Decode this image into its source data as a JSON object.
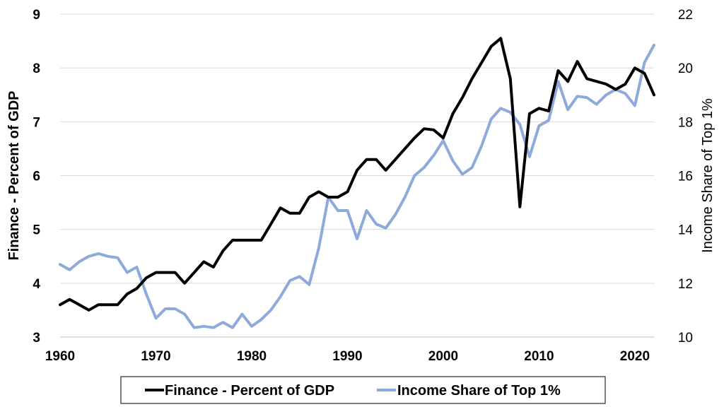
{
  "chart_data": {
    "type": "line",
    "title": "",
    "xlabel": "",
    "xlim": [
      1960,
      2022
    ],
    "x_ticks": [
      "1960",
      "1970",
      "1980",
      "1990",
      "2000",
      "2010",
      "2020"
    ],
    "left_axis": {
      "label": "Finance - Percent of GDP",
      "ylim": [
        3,
        9
      ],
      "ticks": [
        "3",
        "4",
        "5",
        "6",
        "7",
        "8",
        "9"
      ]
    },
    "right_axis": {
      "label": "Income Share of Top 1%",
      "ylim": [
        10,
        22
      ],
      "ticks": [
        "10",
        "12",
        "14",
        "16",
        "18",
        "20",
        "22"
      ]
    },
    "grid": "horizontal",
    "legend_position": "bottom",
    "x": [
      1960,
      1961,
      1962,
      1963,
      1964,
      1965,
      1966,
      1967,
      1968,
      1969,
      1970,
      1971,
      1972,
      1973,
      1974,
      1975,
      1976,
      1977,
      1978,
      1979,
      1980,
      1981,
      1982,
      1983,
      1984,
      1985,
      1986,
      1987,
      1988,
      1989,
      1990,
      1991,
      1992,
      1993,
      1994,
      1995,
      1996,
      1997,
      1998,
      1999,
      2000,
      2001,
      2002,
      2003,
      2004,
      2005,
      2006,
      2007,
      2008,
      2009,
      2010,
      2011,
      2012,
      2013,
      2014,
      2015,
      2016,
      2017,
      2018,
      2019,
      2020,
      2021,
      2022
    ],
    "series": [
      {
        "name": "Finance - Percent of GDP",
        "axis": "left",
        "color": "#000000",
        "values": [
          3.6,
          3.7,
          3.6,
          3.5,
          3.6,
          3.6,
          3.6,
          3.8,
          3.9,
          4.1,
          4.2,
          4.2,
          4.2,
          4.0,
          4.2,
          4.4,
          4.3,
          4.6,
          4.8,
          4.8,
          4.8,
          4.8,
          5.1,
          5.4,
          5.3,
          5.3,
          5.6,
          5.7,
          5.6,
          5.6,
          5.7,
          6.1,
          6.3,
          6.3,
          6.1,
          6.3,
          6.5,
          6.7,
          6.87,
          6.85,
          6.7,
          7.15,
          7.45,
          7.8,
          8.1,
          8.4,
          8.55,
          7.8,
          5.42,
          7.15,
          7.25,
          7.2,
          7.95,
          7.75,
          8.12,
          7.8,
          7.75,
          7.7,
          7.6,
          7.7,
          8.0,
          7.9,
          7.5
        ]
      },
      {
        "name": "Income Share of Top 1%",
        "axis": "right",
        "color": "#8eaadb",
        "values": [
          12.7,
          12.5,
          12.8,
          13.0,
          13.1,
          13.0,
          12.95,
          12.4,
          12.6,
          11.6,
          10.7,
          11.05,
          11.05,
          10.85,
          10.35,
          10.4,
          10.35,
          10.55,
          10.35,
          10.85,
          10.4,
          10.65,
          11.0,
          11.5,
          12.1,
          12.25,
          11.95,
          13.3,
          15.2,
          14.7,
          14.7,
          13.65,
          14.7,
          14.2,
          14.05,
          14.55,
          15.2,
          16.0,
          16.3,
          16.75,
          17.3,
          16.55,
          16.05,
          16.3,
          17.1,
          18.1,
          18.5,
          18.35,
          17.9,
          16.7,
          17.85,
          18.05,
          19.5,
          18.45,
          18.95,
          18.9,
          18.65,
          19.0,
          19.2,
          19.05,
          18.6,
          20.2,
          20.85
        ]
      }
    ]
  }
}
